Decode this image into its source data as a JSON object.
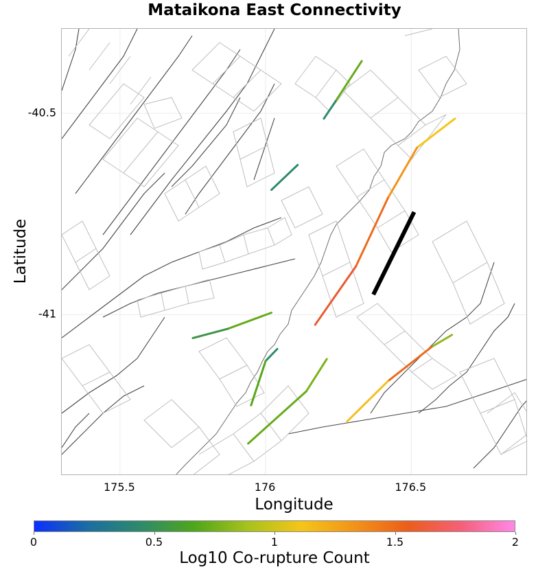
{
  "title": "Mataikona East Connectivity",
  "x_axis": {
    "label": "Longitude",
    "ticks": [
      {
        "value": 175.5,
        "label": "175.5"
      },
      {
        "value": 176,
        "label": "176"
      },
      {
        "value": 176.5,
        "label": "176.5"
      }
    ]
  },
  "y_axis": {
    "label": "Latitude",
    "ticks": [
      {
        "value": -40.5,
        "label": "-40.5"
      },
      {
        "value": -41,
        "label": "-41"
      }
    ]
  },
  "colorbar": {
    "label": "Log10 Co-rupture Count",
    "ticks": [
      "0",
      "0.5",
      "1",
      "1.5",
      "2"
    ],
    "colors": [
      "#0b2fff",
      "#1b6ea0",
      "#2e8a6a",
      "#4fa61b",
      "#a8c21c",
      "#f5c518",
      "#f29318",
      "#ec5d1b",
      "#f5607a",
      "#ff88e8"
    ]
  },
  "colors": {
    "fault_trace": "#444444",
    "subsection_outline": "#bdbdbd",
    "target": "#000000",
    "grid": "#ececec"
  },
  "chart_data": {
    "type": "map",
    "title": "Mataikona East Connectivity",
    "xlabel": "Longitude",
    "ylabel": "Latitude",
    "xlim": [
      175.3,
      176.9
    ],
    "ylim": [
      -41.4,
      -40.29
    ],
    "target_fault": {
      "name": "Mataikona East",
      "color": "#000000",
      "trace": [
        [
          176.37,
          -40.95
        ],
        [
          176.51,
          -40.745
        ]
      ]
    },
    "colored_faults": [
      {
        "log10_count": 1.05,
        "color": "#f5c518",
        "trace": [
          [
            176.65,
            -40.513
          ],
          [
            176.52,
            -40.585
          ]
        ]
      },
      {
        "log10_count": 1.25,
        "color": "#f29318",
        "trace": [
          [
            176.52,
            -40.585
          ],
          [
            176.42,
            -40.71
          ]
        ]
      },
      {
        "log10_count": 1.4,
        "color": "#ec6a1b",
        "trace": [
          [
            176.42,
            -40.71
          ],
          [
            176.31,
            -40.88
          ]
        ]
      },
      {
        "log10_count": 1.55,
        "color": "#e85a30",
        "trace": [
          [
            176.31,
            -40.88
          ],
          [
            176.17,
            -41.025
          ]
        ]
      },
      {
        "log10_count": 0.65,
        "color": "#8fb81c",
        "trace": [
          [
            176.64,
            -41.05
          ],
          [
            176.57,
            -41.08
          ]
        ]
      },
      {
        "log10_count": 1.45,
        "color": "#ec6a1b",
        "trace": [
          [
            176.57,
            -41.08
          ],
          [
            176.42,
            -41.165
          ]
        ]
      },
      {
        "log10_count": 1.1,
        "color": "#f5bf20",
        "trace": [
          [
            176.42,
            -41.165
          ],
          [
            176.28,
            -41.265
          ]
        ]
      },
      {
        "log10_count": 0.6,
        "color": "#7ab21a",
        "trace": [
          [
            176.21,
            -41.11
          ],
          [
            176.14,
            -41.19
          ]
        ]
      },
      {
        "log10_count": 0.55,
        "color": "#65ab18",
        "trace": [
          [
            176.14,
            -41.19
          ],
          [
            175.94,
            -41.32
          ]
        ]
      },
      {
        "log10_count": 0.35,
        "color": "#2e8a6a",
        "trace": [
          [
            176.04,
            -41.085
          ],
          [
            176.0,
            -41.115
          ]
        ]
      },
      {
        "log10_count": 0.5,
        "color": "#56a618",
        "trace": [
          [
            176.0,
            -41.115
          ],
          [
            175.95,
            -41.225
          ]
        ]
      },
      {
        "log10_count": 0.55,
        "color": "#65ab18",
        "trace": [
          [
            176.33,
            -40.37
          ],
          [
            176.24,
            -40.47
          ]
        ]
      },
      {
        "log10_count": 0.35,
        "color": "#2e8a6a",
        "trace": [
          [
            176.24,
            -40.47
          ],
          [
            176.2,
            -40.513
          ]
        ]
      },
      {
        "log10_count": 0.35,
        "color": "#2e8a6a",
        "trace": [
          [
            176.11,
            -40.628
          ],
          [
            176.02,
            -40.69
          ]
        ]
      },
      {
        "log10_count": 0.55,
        "color": "#65ab18",
        "trace": [
          [
            176.02,
            -40.995
          ],
          [
            175.87,
            -41.035
          ]
        ]
      },
      {
        "log10_count": 0.4,
        "color": "#3b9345",
        "trace": [
          [
            175.87,
            -41.035
          ],
          [
            175.75,
            -41.058
          ]
        ]
      }
    ]
  }
}
